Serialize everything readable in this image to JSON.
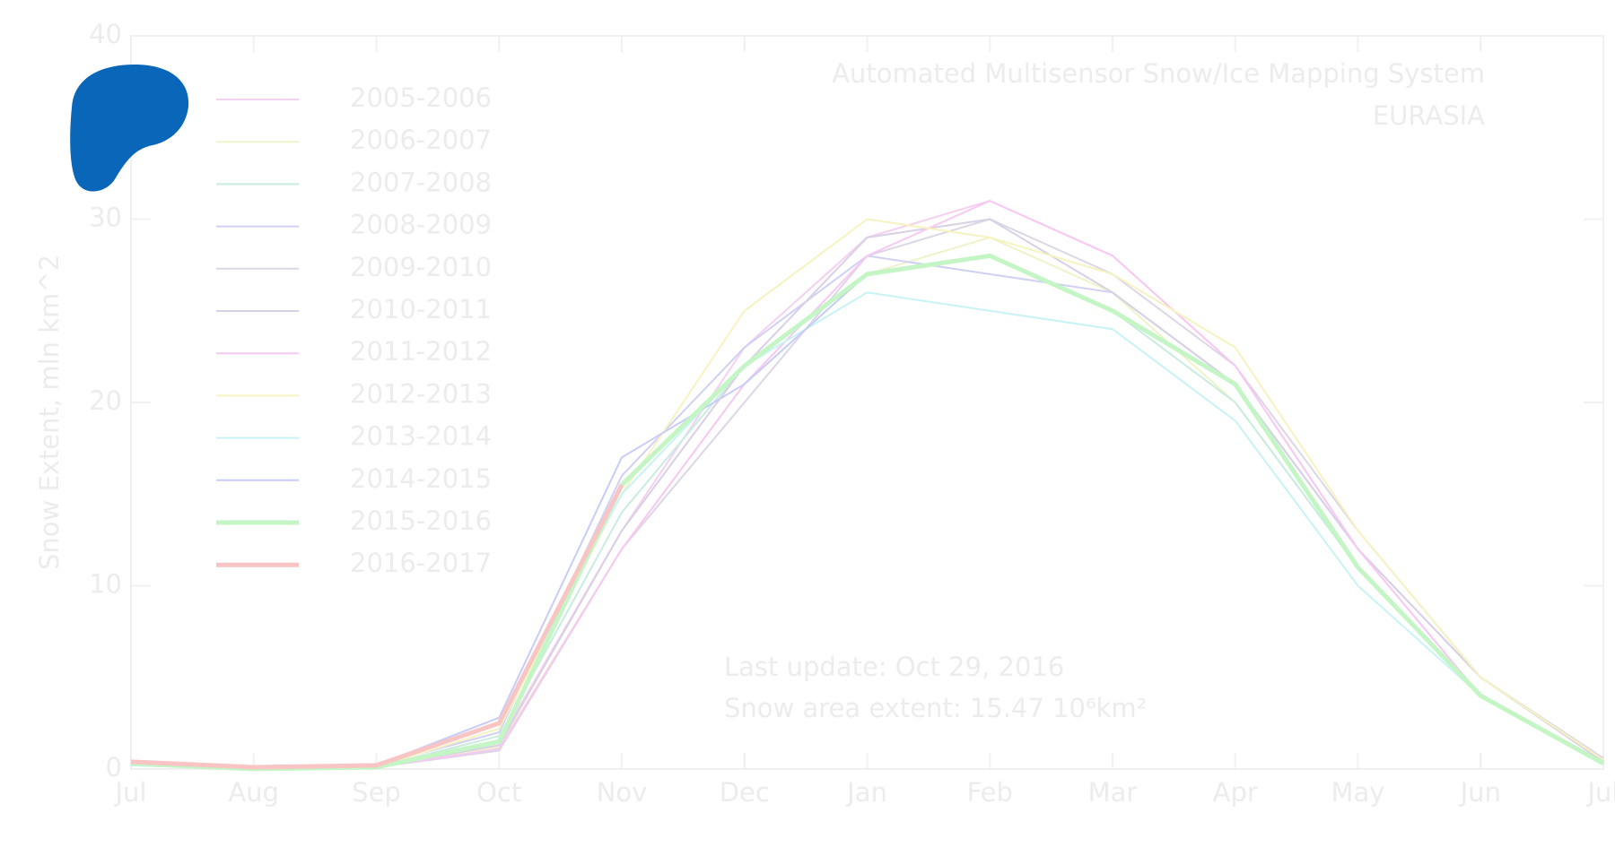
{
  "chart_data": {
    "type": "line",
    "title": "Automated  Multisensor Snow/Ice Mapping System",
    "subtitle": "EURASIA",
    "y_label": "Snow Extent, mln km^2",
    "annotations": [
      "Last update: Oct 29, 2016",
      "Snow area extent: 15.47 10⁶km²"
    ],
    "categories": [
      "Jul",
      "Aug",
      "Sep",
      "Oct",
      "Nov",
      "Dec",
      "Jan",
      "Feb",
      "Mar",
      "Apr",
      "May",
      "Jun",
      "Jul"
    ],
    "ylim": [
      0,
      40
    ],
    "yticks": [
      0,
      10,
      20,
      30,
      40
    ],
    "series": [
      {
        "name": "2005-2006",
        "color": "#f5d0f0",
        "values": [
          0.3,
          0.1,
          0.1,
          1.5,
          13,
          23,
          29,
          31,
          28,
          22,
          12,
          4,
          0.4
        ]
      },
      {
        "name": "2006-2007",
        "color": "#eef3c8",
        "values": [
          0.3,
          0.1,
          0.1,
          1.2,
          12,
          21,
          27,
          29,
          26,
          20,
          11,
          4,
          0.3
        ]
      },
      {
        "name": "2007-2008",
        "color": "#c8ece0",
        "values": [
          0.2,
          0.0,
          0.1,
          1.8,
          14,
          22,
          27,
          28,
          25,
          20,
          11,
          4,
          0.3
        ]
      },
      {
        "name": "2008-2009",
        "color": "#d0d0f5",
        "values": [
          0.3,
          0.1,
          0.2,
          2.0,
          16,
          23,
          28,
          27,
          26,
          21,
          12,
          5,
          0.5
        ]
      },
      {
        "name": "2009-2010",
        "color": "#dcd6e6",
        "values": [
          0.3,
          0.1,
          0.1,
          1.0,
          12,
          20,
          28,
          30,
          27,
          22,
          13,
          5,
          0.6
        ]
      },
      {
        "name": "2010-2011",
        "color": "#d8d0e4",
        "values": [
          0.2,
          0.1,
          0.1,
          1.3,
          13,
          22,
          29,
          30,
          26,
          21,
          12,
          5,
          0.4
        ]
      },
      {
        "name": "2011-2012",
        "color": "#f8c8f4",
        "values": [
          0.3,
          0.1,
          0.1,
          1.1,
          12,
          21,
          28,
          31,
          28,
          22,
          12,
          4,
          0.4
        ]
      },
      {
        "name": "2012-2013",
        "color": "#f6f3c0",
        "values": [
          0.3,
          0.0,
          0.1,
          2.2,
          15,
          25,
          30,
          29,
          27,
          23,
          13,
          5,
          0.5
        ]
      },
      {
        "name": "2013-2014",
        "color": "#c8f3f6",
        "values": [
          0.2,
          0.0,
          0.1,
          2.5,
          15,
          22,
          26,
          25,
          24,
          19,
          10,
          4,
          0.3
        ]
      },
      {
        "name": "2014-2015",
        "color": "#c8ccf8",
        "values": [
          0.3,
          0.1,
          0.2,
          2.8,
          17,
          21,
          27,
          28,
          25,
          21,
          11,
          4,
          0.4
        ]
      },
      {
        "name": "2015-2016",
        "color": "#c4f5c4",
        "values": [
          0.3,
          0.0,
          0.1,
          1.5,
          15.5,
          22,
          27,
          28,
          25,
          21,
          11,
          4,
          0.3
        ]
      },
      {
        "name": "2016-2017",
        "color": "#f8c4c4",
        "values": [
          0.4,
          0.1,
          0.2,
          2.5,
          15.5,
          null,
          null,
          null,
          null,
          null,
          null,
          null,
          null
        ]
      }
    ]
  }
}
